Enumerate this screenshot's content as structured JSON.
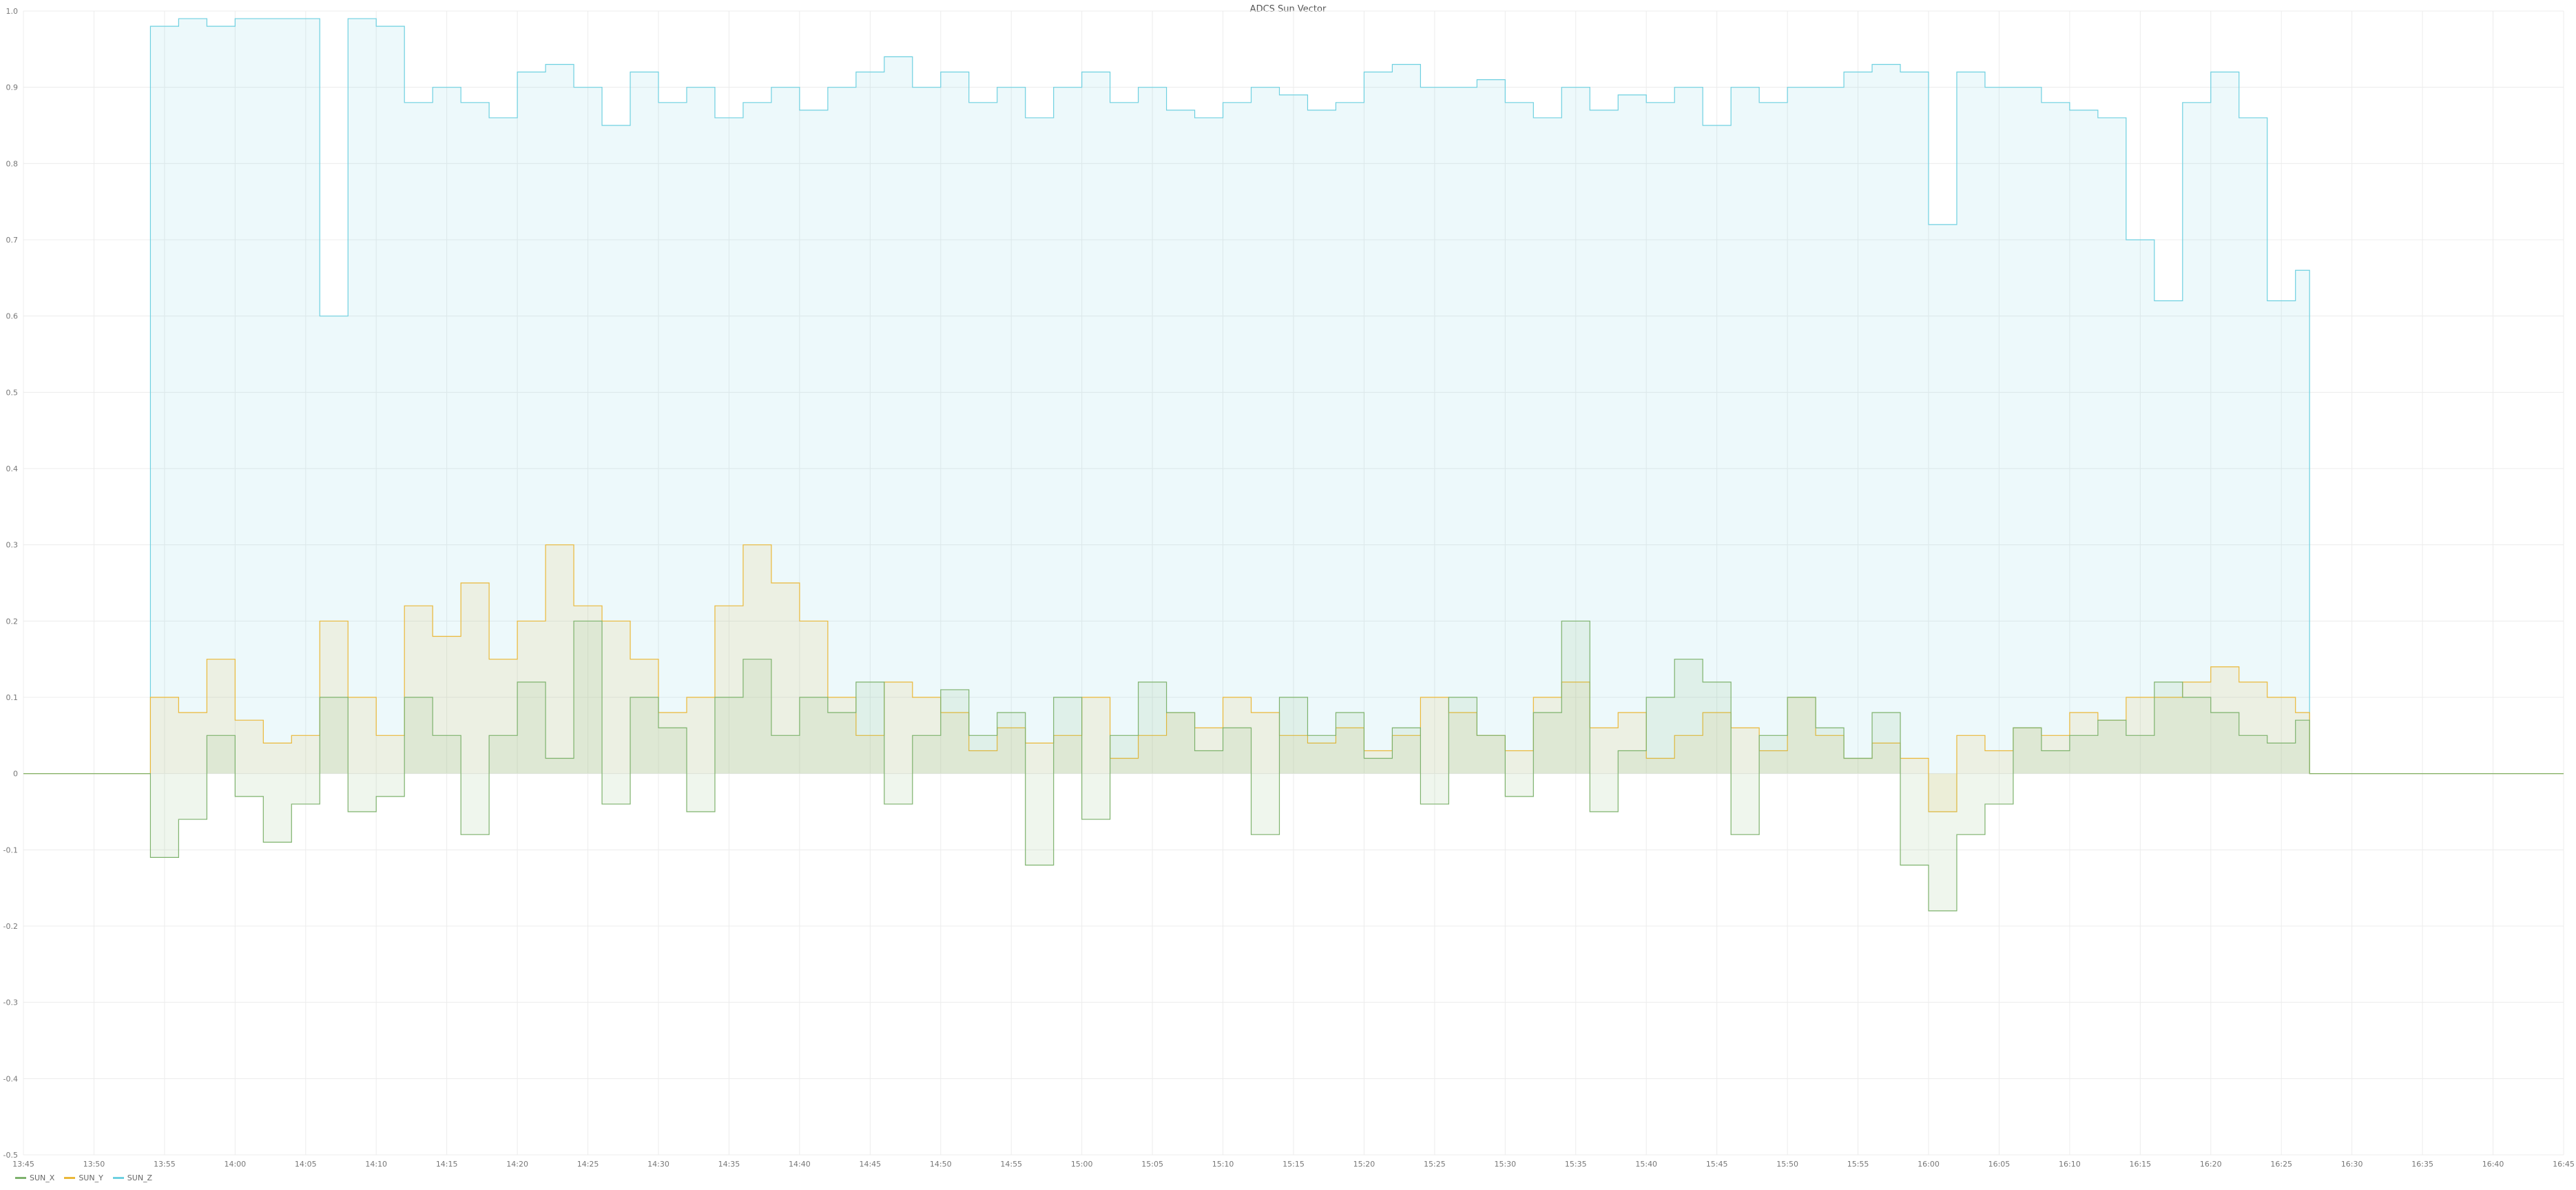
{
  "chart_data": {
    "type": "area",
    "title": "ADCS Sun Vector",
    "xlabel": "",
    "ylabel": "",
    "ylim": [
      -0.5,
      1.0
    ],
    "y_ticks": [
      "-0.5",
      "-0.4",
      "-0.3",
      "-0.2",
      "-0.1",
      "0",
      "0.1",
      "0.2",
      "0.3",
      "0.4",
      "0.5",
      "0.6",
      "0.7",
      "0.8",
      "0.9",
      "1.0"
    ],
    "x_ticks": [
      "13:45",
      "13:50",
      "13:55",
      "14:00",
      "14:05",
      "14:10",
      "14:15",
      "14:20",
      "14:25",
      "14:30",
      "14:35",
      "14:40",
      "14:45",
      "14:50",
      "14:55",
      "15:00",
      "15:05",
      "15:10",
      "15:15",
      "15:20",
      "15:25",
      "15:30",
      "15:35",
      "15:40",
      "15:45",
      "15:50",
      "15:55",
      "16:00",
      "16:05",
      "16:10",
      "16:15",
      "16:20",
      "16:25",
      "16:30",
      "16:35",
      "16:40",
      "16:45"
    ],
    "grid": true,
    "legend_position": "bottom-left",
    "step": true,
    "x": [
      "13:45",
      "13:48",
      "13:50",
      "13:54",
      "13:56",
      "13:58",
      "14:00",
      "14:02",
      "14:04",
      "14:06",
      "14:08",
      "14:10",
      "14:12",
      "14:14",
      "14:16",
      "14:18",
      "14:20",
      "14:22",
      "14:24",
      "14:26",
      "14:28",
      "14:30",
      "14:32",
      "14:34",
      "14:36",
      "14:38",
      "14:40",
      "14:42",
      "14:44",
      "14:46",
      "14:48",
      "14:50",
      "14:52",
      "14:54",
      "14:56",
      "14:58",
      "15:00",
      "15:02",
      "15:04",
      "15:06",
      "15:08",
      "15:10",
      "15:12",
      "15:14",
      "15:16",
      "15:18",
      "15:20",
      "15:22",
      "15:24",
      "15:26",
      "15:28",
      "15:30",
      "15:32",
      "15:34",
      "15:36",
      "15:38",
      "15:40",
      "15:42",
      "15:44",
      "15:46",
      "15:48",
      "15:50",
      "15:52",
      "15:54",
      "15:56",
      "15:58",
      "16:00",
      "16:02",
      "16:04",
      "16:06",
      "16:08",
      "16:10",
      "16:12",
      "16:14",
      "16:16",
      "16:18",
      "16:20",
      "16:22",
      "16:24",
      "16:26",
      "16:27",
      "16:30",
      "16:35",
      "16:40",
      "16:45"
    ],
    "series": [
      {
        "name": "SUN_X",
        "color": "#7eb26d",
        "values": [
          0,
          0,
          0,
          -0.11,
          -0.06,
          0.05,
          -0.03,
          -0.09,
          -0.04,
          0.1,
          -0.05,
          -0.03,
          0.1,
          0.05,
          -0.08,
          0.05,
          0.12,
          0.02,
          0.2,
          -0.04,
          0.1,
          0.06,
          -0.05,
          0.1,
          0.15,
          0.05,
          0.1,
          0.08,
          0.12,
          -0.04,
          0.05,
          0.11,
          0.05,
          0.08,
          -0.12,
          0.1,
          -0.06,
          0.05,
          0.12,
          0.08,
          0.03,
          0.06,
          -0.08,
          0.1,
          0.05,
          0.08,
          0.02,
          0.06,
          -0.04,
          0.1,
          0.05,
          -0.03,
          0.08,
          0.2,
          -0.05,
          0.03,
          0.1,
          0.15,
          0.12,
          -0.08,
          0.05,
          0.1,
          0.06,
          0.02,
          0.08,
          -0.12,
          -0.18,
          -0.08,
          -0.04,
          0.06,
          0.03,
          0.05,
          0.07,
          0.05,
          0.12,
          0.1,
          0.08,
          0.05,
          0.04,
          0.07,
          0,
          0,
          0,
          0,
          0
        ]
      },
      {
        "name": "SUN_Y",
        "color": "#eab839",
        "values": [
          0,
          0,
          0,
          0.1,
          0.08,
          0.15,
          0.07,
          0.04,
          0.05,
          0.2,
          0.1,
          0.05,
          0.22,
          0.18,
          0.25,
          0.15,
          0.2,
          0.3,
          0.22,
          0.2,
          0.15,
          0.08,
          0.1,
          0.22,
          0.3,
          0.25,
          0.2,
          0.1,
          0.05,
          0.12,
          0.1,
          0.08,
          0.03,
          0.06,
          0.04,
          0.05,
          0.1,
          0.02,
          0.05,
          0.08,
          0.06,
          0.1,
          0.08,
          0.05,
          0.04,
          0.06,
          0.03,
          0.05,
          0.1,
          0.08,
          0.05,
          0.03,
          0.1,
          0.12,
          0.06,
          0.08,
          0.02,
          0.05,
          0.08,
          0.06,
          0.03,
          0.1,
          0.05,
          0.02,
          0.04,
          0.02,
          -0.05,
          0.05,
          0.03,
          0.06,
          0.05,
          0.08,
          0.07,
          0.1,
          0.1,
          0.12,
          0.14,
          0.12,
          0.1,
          0.08,
          0,
          0,
          0,
          0,
          0
        ]
      },
      {
        "name": "SUN_Z",
        "color": "#6ed0e0",
        "values": [
          0,
          0,
          0,
          0.98,
          0.99,
          0.98,
          0.99,
          0.99,
          0.99,
          0.6,
          0.99,
          0.98,
          0.88,
          0.9,
          0.88,
          0.86,
          0.92,
          0.93,
          0.9,
          0.85,
          0.92,
          0.88,
          0.9,
          0.86,
          0.88,
          0.9,
          0.87,
          0.9,
          0.92,
          0.94,
          0.9,
          0.92,
          0.88,
          0.9,
          0.86,
          0.9,
          0.92,
          0.88,
          0.9,
          0.87,
          0.86,
          0.88,
          0.9,
          0.89,
          0.87,
          0.88,
          0.92,
          0.93,
          0.9,
          0.9,
          0.91,
          0.88,
          0.86,
          0.9,
          0.87,
          0.89,
          0.88,
          0.9,
          0.85,
          0.9,
          0.88,
          0.9,
          0.9,
          0.92,
          0.93,
          0.92,
          0.72,
          0.92,
          0.9,
          0.9,
          0.88,
          0.87,
          0.86,
          0.7,
          0.62,
          0.88,
          0.92,
          0.86,
          0.62,
          0.66,
          0,
          0,
          0,
          0,
          0
        ]
      }
    ]
  }
}
